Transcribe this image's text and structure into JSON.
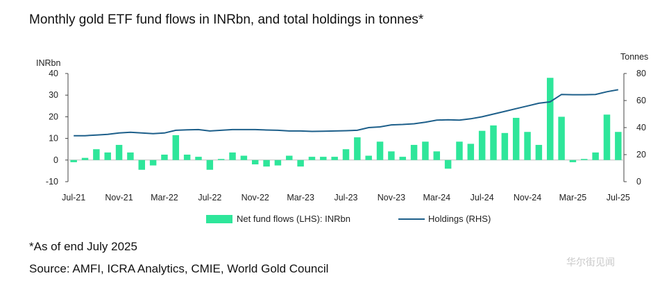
{
  "title": "Monthly gold ETF fund flows in INRbn, and total holdings in tonnes*",
  "chart_data": {
    "type": "bar",
    "title": "Monthly gold ETF fund flows in INRbn, and total holdings in tonnes*",
    "left_axis_label": "INRbn",
    "right_axis_label": "Tonnes",
    "ylim_left": [
      -10,
      40
    ],
    "ylim_right": [
      0,
      80
    ],
    "left_ticks": [
      "40",
      "30",
      "20",
      "10",
      "0",
      "-10"
    ],
    "right_ticks": [
      "80",
      "60",
      "40",
      "20",
      "0"
    ],
    "x_tick_labels": [
      "Jul-21",
      "Nov-21",
      "Mar-22",
      "Jul-22",
      "Nov-22",
      "Mar-23",
      "Jul-23",
      "Nov-23",
      "Mar-24",
      "Jul-24",
      "Nov-24",
      "Mar-25",
      "Jul-25"
    ],
    "categories": [
      "Jul-21",
      "Aug-21",
      "Sep-21",
      "Oct-21",
      "Nov-21",
      "Dec-21",
      "Jan-22",
      "Feb-22",
      "Mar-22",
      "Apr-22",
      "May-22",
      "Jun-22",
      "Jul-22",
      "Aug-22",
      "Sep-22",
      "Oct-22",
      "Nov-22",
      "Dec-22",
      "Jan-23",
      "Feb-23",
      "Mar-23",
      "Apr-23",
      "May-23",
      "Jun-23",
      "Jul-23",
      "Aug-23",
      "Sep-23",
      "Oct-23",
      "Nov-23",
      "Dec-23",
      "Jan-24",
      "Feb-24",
      "Mar-24",
      "Apr-24",
      "May-24",
      "Jun-24",
      "Jul-24",
      "Aug-24",
      "Sep-24",
      "Oct-24",
      "Nov-24",
      "Dec-24",
      "Jan-25",
      "Feb-25",
      "Mar-25",
      "Apr-25",
      "May-25",
      "Jun-25",
      "Jul-25"
    ],
    "series": [
      {
        "name": "Net fund flows (LHS): INRbn",
        "type": "bar",
        "axis": "left",
        "color": "#2ee69a",
        "values": [
          -1,
          1,
          5,
          3.5,
          7,
          3.5,
          -4.5,
          -2.5,
          2.5,
          11.5,
          2.5,
          1.5,
          -4.5,
          0.5,
          3.5,
          2,
          -2,
          -3,
          -2.5,
          2,
          -3,
          1.5,
          1.5,
          1.5,
          5,
          10.5,
          2,
          8.5,
          4,
          1.5,
          7,
          8.5,
          4,
          -4,
          8.5,
          7.5,
          13.5,
          16,
          12.5,
          19.5,
          13,
          7,
          38,
          20,
          -1,
          0.5,
          3.5,
          21,
          13
        ]
      },
      {
        "name": "Holdings (RHS)",
        "type": "line",
        "axis": "right",
        "color": "#1d5f8a",
        "values": [
          34,
          34,
          34.5,
          35,
          36,
          36.5,
          36,
          35.5,
          36,
          38,
          38.3,
          38.5,
          37.5,
          38,
          38.5,
          38.5,
          38.5,
          38.2,
          38,
          37.5,
          37.5,
          37.2,
          37.3,
          37.5,
          37.7,
          38,
          40,
          40.5,
          42,
          42.3,
          42.8,
          44,
          45.5,
          45.8,
          45.5,
          46.5,
          48,
          50,
          52,
          54,
          56,
          58,
          59,
          64.5,
          64.3,
          64.3,
          64.5,
          66.5,
          68
        ]
      }
    ],
    "grid": false,
    "legend_position": "bottom"
  },
  "legend": {
    "bar_label": "Net fund flows (LHS): INRbn",
    "line_label": "Holdings (RHS)"
  },
  "note": "*As of end July 2025",
  "source": "Source: AMFI, ICRA Analytics, CMIE, World Gold Council",
  "watermark": "华尔街见闻"
}
